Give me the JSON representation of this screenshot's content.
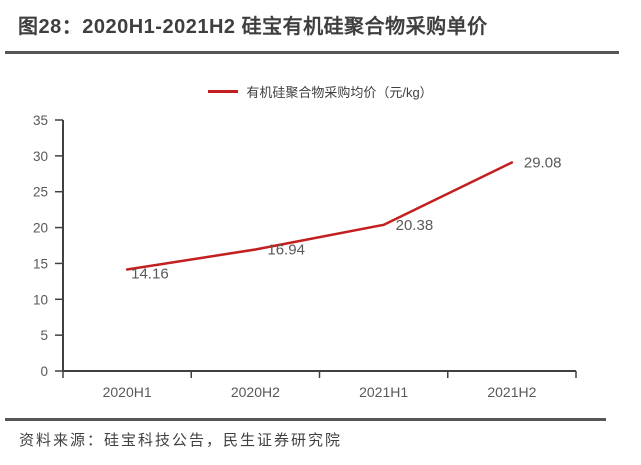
{
  "header": {
    "title": "图28：2020H1-2021H2 硅宝有机硅聚合物采购单价"
  },
  "legend": {
    "label": "有机硅聚合物采购均价（元/kg）"
  },
  "footer": {
    "source": "资料来源：硅宝科技公告，民生证券研究院"
  },
  "colors": {
    "line": "#c41f1f",
    "axis": "#404040",
    "tick_label": "#595959",
    "data_label": "#595959",
    "title_text": "#3f3f3f",
    "legend_text": "#404040",
    "source_text": "#404040",
    "rule": "#565656",
    "background": "#ffffff"
  },
  "chart_data": {
    "type": "line",
    "title": "2020H1-2021H2 硅宝有机硅聚合物采购单价",
    "categories": [
      "2020H1",
      "2020H2",
      "2021H1",
      "2021H2"
    ],
    "series": [
      {
        "name": "有机硅聚合物采购均价（元/kg）",
        "values": [
          14.16,
          16.94,
          20.38,
          29.08
        ]
      }
    ],
    "data_labels": [
      "14.16",
      "16.94",
      "20.38",
      "29.08"
    ],
    "xlabel": "",
    "ylabel": "",
    "ylim": [
      0,
      35
    ],
    "ytick_step": 5,
    "grid": false,
    "legend_position": "top",
    "markers": false
  }
}
